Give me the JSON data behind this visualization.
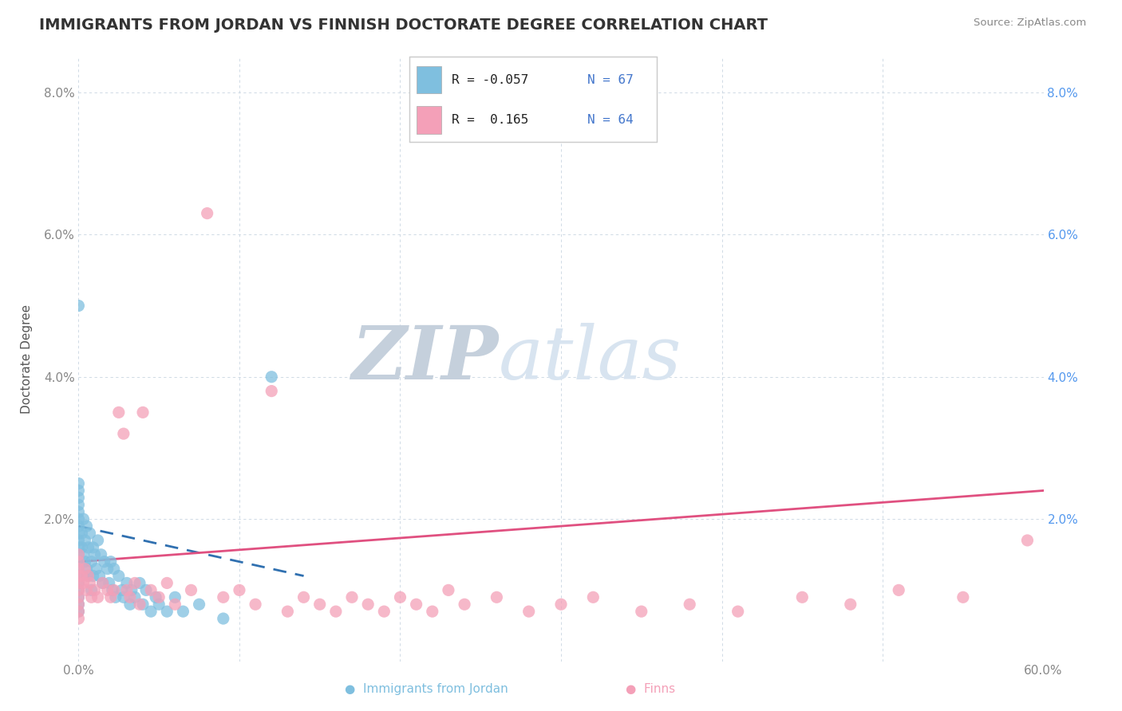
{
  "title": "IMMIGRANTS FROM JORDAN VS FINNISH DOCTORATE DEGREE CORRELATION CHART",
  "source": "Source: ZipAtlas.com",
  "ylabel": "Doctorate Degree",
  "x_min": 0.0,
  "x_max": 0.6,
  "y_min": 0.0,
  "y_max": 0.085,
  "x_ticks": [
    0.0,
    0.1,
    0.2,
    0.3,
    0.4,
    0.5,
    0.6
  ],
  "x_tick_labels": [
    "0.0%",
    "",
    "",
    "",
    "",
    "",
    "60.0%"
  ],
  "y_ticks": [
    0.0,
    0.02,
    0.04,
    0.06,
    0.08
  ],
  "y_tick_labels_left": [
    "",
    "2.0%",
    "4.0%",
    "6.0%",
    "8.0%"
  ],
  "y_tick_labels_right": [
    "",
    "2.0%",
    "4.0%",
    "6.0%",
    "8.0%"
  ],
  "blue_color": "#7fbfdf",
  "pink_color": "#f4a0b8",
  "blue_line_color": "#3070b0",
  "pink_line_color": "#e05080",
  "watermark_color": "#d0dce8",
  "bg_color": "#ffffff",
  "grid_color": "#c8d4e0",
  "title_fontsize": 14,
  "axis_fontsize": 11,
  "tick_fontsize": 11,
  "right_tick_color": "#5599ee",
  "blue_x": [
    0.0,
    0.0,
    0.0,
    0.0,
    0.0,
    0.0,
    0.0,
    0.0,
    0.0,
    0.0,
    0.0,
    0.0,
    0.0,
    0.0,
    0.0,
    0.0,
    0.0,
    0.0,
    0.0,
    0.0,
    0.002,
    0.002,
    0.003,
    0.003,
    0.004,
    0.004,
    0.005,
    0.005,
    0.006,
    0.006,
    0.007,
    0.008,
    0.008,
    0.009,
    0.009,
    0.01,
    0.011,
    0.012,
    0.013,
    0.014,
    0.015,
    0.016,
    0.018,
    0.019,
    0.02,
    0.021,
    0.022,
    0.023,
    0.025,
    0.027,
    0.028,
    0.03,
    0.032,
    0.033,
    0.035,
    0.038,
    0.04,
    0.042,
    0.045,
    0.048,
    0.05,
    0.055,
    0.06,
    0.065,
    0.075,
    0.09,
    0.12
  ],
  "blue_y": [
    0.02,
    0.019,
    0.018,
    0.017,
    0.016,
    0.015,
    0.014,
    0.013,
    0.012,
    0.011,
    0.01,
    0.009,
    0.008,
    0.007,
    0.022,
    0.021,
    0.023,
    0.024,
    0.025,
    0.05,
    0.018,
    0.016,
    0.02,
    0.015,
    0.017,
    0.014,
    0.019,
    0.013,
    0.016,
    0.012,
    0.018,
    0.014,
    0.01,
    0.016,
    0.012,
    0.015,
    0.013,
    0.017,
    0.012,
    0.015,
    0.011,
    0.014,
    0.013,
    0.011,
    0.014,
    0.01,
    0.013,
    0.009,
    0.012,
    0.01,
    0.009,
    0.011,
    0.008,
    0.01,
    0.009,
    0.011,
    0.008,
    0.01,
    0.007,
    0.009,
    0.008,
    0.007,
    0.009,
    0.007,
    0.008,
    0.006,
    0.04
  ],
  "pink_x": [
    0.0,
    0.0,
    0.0,
    0.0,
    0.0,
    0.0,
    0.0,
    0.0,
    0.0,
    0.0,
    0.002,
    0.003,
    0.004,
    0.005,
    0.006,
    0.007,
    0.008,
    0.01,
    0.012,
    0.015,
    0.018,
    0.02,
    0.022,
    0.025,
    0.028,
    0.03,
    0.032,
    0.035,
    0.038,
    0.04,
    0.045,
    0.05,
    0.055,
    0.06,
    0.07,
    0.08,
    0.09,
    0.1,
    0.11,
    0.12,
    0.13,
    0.14,
    0.15,
    0.16,
    0.17,
    0.18,
    0.19,
    0.2,
    0.21,
    0.22,
    0.23,
    0.24,
    0.26,
    0.28,
    0.3,
    0.32,
    0.35,
    0.38,
    0.41,
    0.45,
    0.48,
    0.51,
    0.55,
    0.59
  ],
  "pink_y": [
    0.015,
    0.014,
    0.013,
    0.012,
    0.011,
    0.01,
    0.009,
    0.008,
    0.007,
    0.006,
    0.012,
    0.011,
    0.013,
    0.01,
    0.012,
    0.011,
    0.009,
    0.01,
    0.009,
    0.011,
    0.01,
    0.009,
    0.01,
    0.035,
    0.032,
    0.01,
    0.009,
    0.011,
    0.008,
    0.035,
    0.01,
    0.009,
    0.011,
    0.008,
    0.01,
    0.063,
    0.009,
    0.01,
    0.008,
    0.038,
    0.007,
    0.009,
    0.008,
    0.007,
    0.009,
    0.008,
    0.007,
    0.009,
    0.008,
    0.007,
    0.01,
    0.008,
    0.009,
    0.007,
    0.008,
    0.009,
    0.007,
    0.008,
    0.007,
    0.009,
    0.008,
    0.01,
    0.009,
    0.017
  ],
  "blue_trend_x": [
    0.0,
    0.14
  ],
  "blue_trend_y_start": 0.019,
  "blue_trend_y_end": 0.012,
  "pink_trend_x": [
    0.0,
    0.6
  ],
  "pink_trend_y_start": 0.014,
  "pink_trend_y_end": 0.024
}
